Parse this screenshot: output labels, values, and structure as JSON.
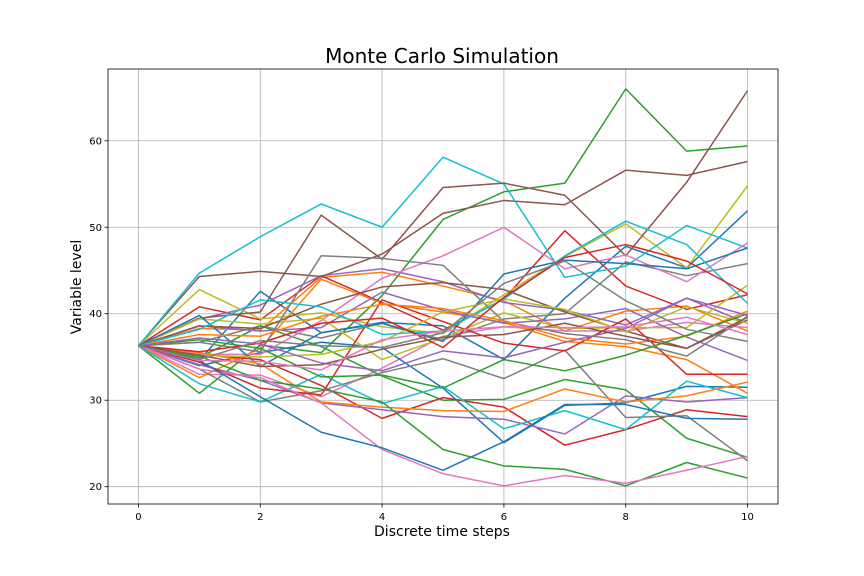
{
  "chart_data": {
    "type": "line",
    "title": "Monte Carlo Simulation",
    "xlabel": "Discrete time steps",
    "ylabel": "Variable level",
    "xlim": [
      -0.5,
      10.5
    ],
    "ylim": [
      18.0,
      68.3
    ],
    "xticks": [
      0,
      2,
      4,
      6,
      8,
      10
    ],
    "yticks": [
      20,
      30,
      40,
      50,
      60
    ],
    "grid": true,
    "x": [
      0,
      1,
      2,
      3,
      4,
      5,
      6,
      7,
      8,
      9,
      10
    ],
    "series": [
      {
        "color": "#1f77b4",
        "values": [
          36.3,
          34.6,
          42.6,
          37.8,
          39.0,
          38.6,
          34.7,
          41.8,
          47.8,
          45.3,
          51.9
        ]
      },
      {
        "color": "#ff7f0e",
        "values": [
          36.3,
          38.3,
          38.1,
          44.2,
          44.8,
          43.2,
          41.5,
          38.0,
          40.3,
          40.9,
          38.0
        ]
      },
      {
        "color": "#2ca02c",
        "values": [
          36.3,
          30.8,
          36.4,
          35.5,
          42.1,
          50.9,
          54.1,
          55.1,
          66.0,
          58.8,
          59.4
        ]
      },
      {
        "color": "#d62728",
        "values": [
          36.3,
          40.8,
          39.3,
          44.4,
          41.3,
          38.1,
          41.7,
          49.6,
          43.2,
          40.5,
          42.2
        ]
      },
      {
        "color": "#9467bd",
        "values": [
          36.3,
          39.4,
          41.0,
          44.4,
          45.2,
          43.7,
          41.3,
          40.4,
          38.7,
          41.8,
          38.9
        ]
      },
      {
        "color": "#8c564b",
        "values": [
          36.3,
          44.3,
          44.9,
          44.3,
          46.9,
          51.6,
          53.1,
          52.6,
          56.6,
          56.0,
          57.6
        ]
      },
      {
        "color": "#e377c2",
        "values": [
          36.3,
          33.0,
          32.9,
          30.4,
          33.7,
          37.4,
          38.5,
          38.0,
          38.0,
          39.0,
          38.4
        ]
      },
      {
        "color": "#7f7f7f",
        "values": [
          36.3,
          36.7,
          38.6,
          37.2,
          38.9,
          37.0,
          39.4,
          40.0,
          46.0,
          44.4,
          45.8
        ]
      },
      {
        "color": "#bcbd22",
        "values": [
          36.3,
          42.8,
          39.4,
          40.1,
          38.5,
          37.7,
          42.2,
          46.6,
          50.4,
          45.3,
          54.8
        ]
      },
      {
        "color": "#17becf",
        "values": [
          36.3,
          44.7,
          48.9,
          52.7,
          50.0,
          58.1,
          55.0,
          44.2,
          45.5,
          50.2,
          47.6
        ]
      },
      {
        "color": "#1f77b4",
        "values": [
          36.3,
          34.0,
          35.5,
          36.7,
          36.1,
          31.4,
          25.1,
          29.4,
          29.7,
          31.6,
          31.5
        ]
      },
      {
        "color": "#ff7f0e",
        "values": [
          36.3,
          32.6,
          36.0,
          44.0,
          41.2,
          40.2,
          39.0,
          36.8,
          36.2,
          34.7,
          30.8
        ]
      },
      {
        "color": "#2ca02c",
        "values": [
          36.3,
          34.9,
          38.6,
          36.2,
          32.8,
          30.0,
          30.1,
          32.4,
          31.2,
          25.6,
          23.4
        ]
      },
      {
        "color": "#d62728",
        "values": [
          36.3,
          35.3,
          34.7,
          31.7,
          27.9,
          30.3,
          29.2,
          24.8,
          26.6,
          28.9,
          28.1
        ]
      },
      {
        "color": "#9467bd",
        "values": [
          36.3,
          34.1,
          32.3,
          29.7,
          28.9,
          28.1,
          27.8,
          26.1,
          30.5,
          29.8,
          30.3
        ]
      },
      {
        "color": "#8c564b",
        "values": [
          36.3,
          39.5,
          40.2,
          51.4,
          46.3,
          54.6,
          55.1,
          53.7,
          46.7,
          55.2,
          65.8
        ]
      },
      {
        "color": "#e377c2",
        "values": [
          36.3,
          35.3,
          35.3,
          39.2,
          44.1,
          46.7,
          50.0,
          45.2,
          46.8,
          43.7,
          48.2
        ]
      },
      {
        "color": "#7f7f7f",
        "values": [
          36.3,
          33.6,
          29.8,
          31.1,
          33.2,
          34.8,
          32.5,
          35.8,
          28.0,
          28.2,
          23.0
        ]
      },
      {
        "color": "#bcbd22",
        "values": [
          36.3,
          39.4,
          38.8,
          39.5,
          34.7,
          37.2,
          40.1,
          38.3,
          38.4,
          38.4,
          43.3
        ]
      },
      {
        "color": "#17becf",
        "values": [
          36.3,
          31.9,
          29.8,
          33.0,
          29.6,
          31.6,
          26.7,
          28.8,
          26.6,
          32.2,
          30.3
        ]
      },
      {
        "color": "#1f77b4",
        "values": [
          36.3,
          39.8,
          33.9,
          37.8,
          38.9,
          36.8,
          44.6,
          46.2,
          45.8,
          45.2,
          47.6
        ]
      },
      {
        "color": "#ff7f0e",
        "values": [
          36.3,
          35.5,
          34.2,
          29.8,
          29.2,
          28.8,
          28.7,
          31.3,
          29.8,
          30.5,
          32.1
        ]
      },
      {
        "color": "#2ca02c",
        "values": [
          36.3,
          35.1,
          32.3,
          31.3,
          29.8,
          24.3,
          22.4,
          22.0,
          20.1,
          22.8,
          21.0
        ]
      },
      {
        "color": "#d62728",
        "values": [
          36.3,
          34.4,
          31.4,
          30.6,
          41.6,
          39.1,
          36.6,
          35.7,
          39.4,
          33.0,
          33.0
        ]
      },
      {
        "color": "#9467bd",
        "values": [
          36.3,
          38.6,
          38.0,
          38.4,
          42.5,
          40.4,
          38.9,
          39.4,
          40.6,
          37.3,
          34.6
        ]
      },
      {
        "color": "#8c564b",
        "values": [
          36.3,
          38.6,
          38.3,
          41.1,
          43.1,
          43.6,
          42.8,
          40.2,
          38.0,
          36.0,
          39.3
        ]
      },
      {
        "color": "#e377c2",
        "values": [
          36.3,
          33.6,
          32.6,
          29.7,
          24.3,
          21.5,
          20.1,
          21.3,
          20.4,
          21.9,
          23.5
        ]
      },
      {
        "color": "#7f7f7f",
        "values": [
          36.3,
          36.7,
          35.6,
          46.7,
          46.4,
          45.6,
          39.1,
          37.7,
          37.0,
          35.1,
          39.7
        ]
      },
      {
        "color": "#bcbd22",
        "values": [
          36.3,
          35.2,
          35.0,
          35.3,
          36.8,
          40.2,
          41.7,
          40.5,
          37.9,
          40.8,
          38.9
        ]
      },
      {
        "color": "#17becf",
        "values": [
          36.3,
          38.2,
          41.6,
          40.8,
          37.6,
          38.0,
          41.7,
          46.7,
          50.7,
          48.0,
          41.2
        ]
      },
      {
        "color": "#1f77b4",
        "values": [
          36.3,
          34.6,
          30.4,
          26.3,
          24.5,
          21.9,
          25.2,
          29.5,
          29.5,
          27.9,
          27.8
        ]
      },
      {
        "color": "#ff7f0e",
        "values": [
          36.3,
          37.6,
          37.4,
          39.7,
          41.1,
          40.6,
          39.2,
          37.2,
          36.5,
          37.4,
          40.3
        ]
      },
      {
        "color": "#2ca02c",
        "values": [
          36.3,
          37.0,
          36.0,
          32.7,
          32.9,
          31.4,
          34.7,
          33.4,
          35.2,
          37.5,
          40.0
        ]
      },
      {
        "color": "#d62728",
        "values": [
          36.3,
          35.6,
          36.6,
          38.9,
          39.5,
          36.1,
          41.9,
          46.5,
          48.0,
          46.1,
          42.3
        ]
      },
      {
        "color": "#9467bd",
        "values": [
          36.3,
          37.2,
          36.5,
          34.3,
          33.4,
          35.7,
          34.9,
          36.7,
          38.3,
          41.8,
          39.8
        ]
      },
      {
        "color": "#8c564b",
        "values": [
          36.3,
          35.2,
          33.9,
          34.1,
          35.9,
          37.3,
          37.6,
          38.9,
          37.4,
          36.0,
          39.6
        ]
      },
      {
        "color": "#e377c2",
        "values": [
          36.3,
          34.6,
          34.5,
          33.5,
          37.0,
          38.0,
          38.5,
          38.4,
          38.5,
          39.6,
          37.6
        ]
      },
      {
        "color": "#7f7f7f",
        "values": [
          36.3,
          34.7,
          36.9,
          36.3,
          36.1,
          37.8,
          43.5,
          46.1,
          41.5,
          38.2,
          36.8
        ]
      }
    ]
  }
}
